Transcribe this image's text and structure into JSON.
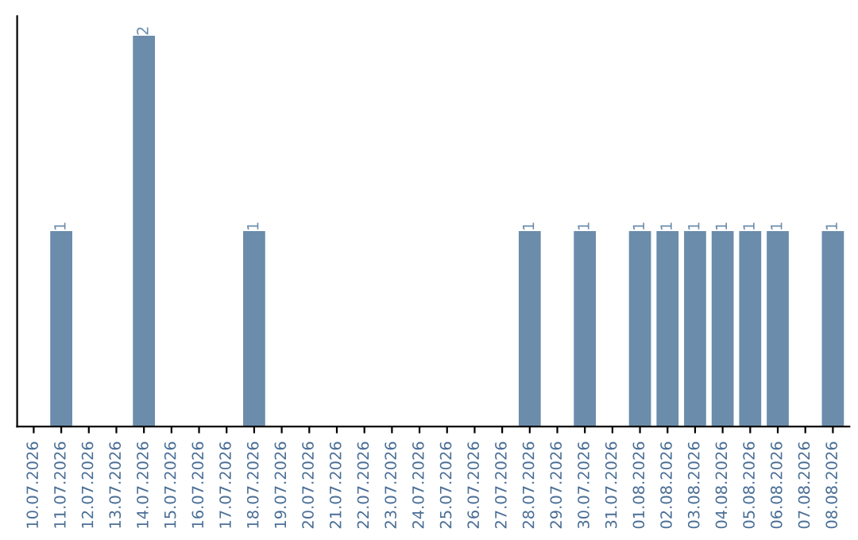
{
  "chart_data": {
    "type": "bar",
    "categories": [
      "10.07.2026",
      "11.07.2026",
      "12.07.2026",
      "13.07.2026",
      "14.07.2026",
      "15.07.2026",
      "16.07.2026",
      "17.07.2026",
      "18.07.2026",
      "19.07.2026",
      "20.07.2026",
      "21.07.2026",
      "22.07.2026",
      "23.07.2026",
      "24.07.2026",
      "25.07.2026",
      "26.07.2026",
      "27.07.2026",
      "28.07.2026",
      "29.07.2026",
      "30.07.2026",
      "31.07.2026",
      "01.08.2026",
      "02.08.2026",
      "03.08.2026",
      "04.08.2026",
      "05.08.2026",
      "06.08.2026",
      "07.08.2026",
      "08.08.2026"
    ],
    "values": [
      0,
      1,
      0,
      0,
      2,
      0,
      0,
      0,
      1,
      0,
      0,
      0,
      0,
      0,
      0,
      0,
      0,
      0,
      1,
      0,
      1,
      0,
      1,
      1,
      1,
      1,
      1,
      1,
      0,
      1
    ],
    "value_labels": [
      null,
      "1",
      null,
      null,
      "2",
      null,
      null,
      null,
      "1",
      null,
      null,
      null,
      null,
      null,
      null,
      null,
      null,
      null,
      "1",
      null,
      "1",
      null,
      "1",
      "1",
      "1",
      "1",
      "1",
      "1",
      null,
      "1"
    ],
    "color": "#6b8cab",
    "tick_labels": "x",
    "grid": false,
    "legend": false
  }
}
